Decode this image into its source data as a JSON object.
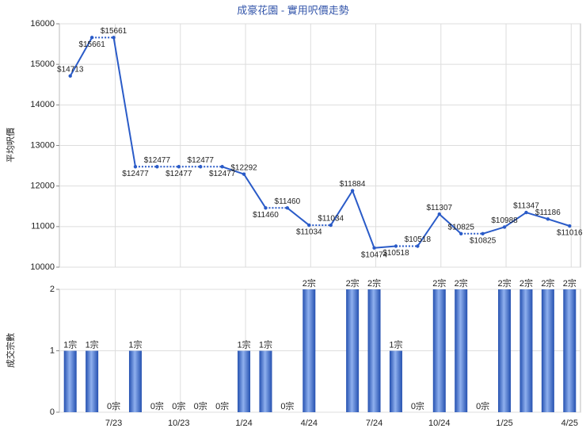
{
  "chart_data": [
    {
      "type": "line",
      "title": "成豪花園 - 實用呎價走勢",
      "y_label": "平均呎價",
      "color": "#2a5bc8",
      "values": [
        14713,
        15661,
        15661,
        12477,
        12477,
        12477,
        12477,
        12477,
        12292,
        11460,
        11460,
        11034,
        11034,
        11884,
        10474,
        10518,
        10518,
        11307,
        10825,
        10825,
        10988,
        11347,
        11186,
        11016
      ],
      "value_labels": [
        "$14713",
        "$15661",
        "$15661",
        "$12477",
        "$12477",
        "$12477",
        "$12477",
        "$12477",
        "$12292",
        "$11460",
        "$11460",
        "$11034",
        "$11034",
        "$11884",
        "$10474",
        "$10518",
        "$10518",
        "$11307",
        "$10825",
        "$10825",
        "$10988",
        "$11347",
        "$11186",
        "$11016"
      ],
      "ylim": [
        10000,
        16000
      ],
      "yticks": [
        10000,
        11000,
        12000,
        13000,
        14000,
        15000,
        16000
      ],
      "grid": true
    },
    {
      "type": "bar",
      "y_label": "成交宗數",
      "color": "#3a6bd0",
      "categories": [
        null,
        null,
        "7/23",
        null,
        null,
        "10/23",
        null,
        null,
        "1/24",
        null,
        null,
        "4/24",
        null,
        null,
        "7/24",
        null,
        null,
        "10/24",
        null,
        null,
        "1/25",
        null,
        null,
        "4/25"
      ],
      "values": [
        1,
        1,
        0,
        1,
        0,
        0,
        0,
        0,
        1,
        1,
        0,
        2,
        null,
        2,
        2,
        1,
        0,
        2,
        2,
        0,
        2,
        2,
        2,
        2
      ],
      "value_labels": [
        "1宗",
        "1宗",
        "0宗",
        "1宗",
        "0宗",
        "0宗",
        "0宗",
        "0宗",
        "1宗",
        "1宗",
        "0宗",
        "2宗",
        null,
        "2宗",
        "2宗",
        "1宗",
        "0宗",
        "2宗",
        "2宗",
        "0宗",
        "2宗",
        "2宗",
        "2宗",
        "2宗"
      ],
      "ylim": [
        0,
        2
      ],
      "yticks": [
        0,
        1,
        2
      ],
      "grid": true
    }
  ]
}
